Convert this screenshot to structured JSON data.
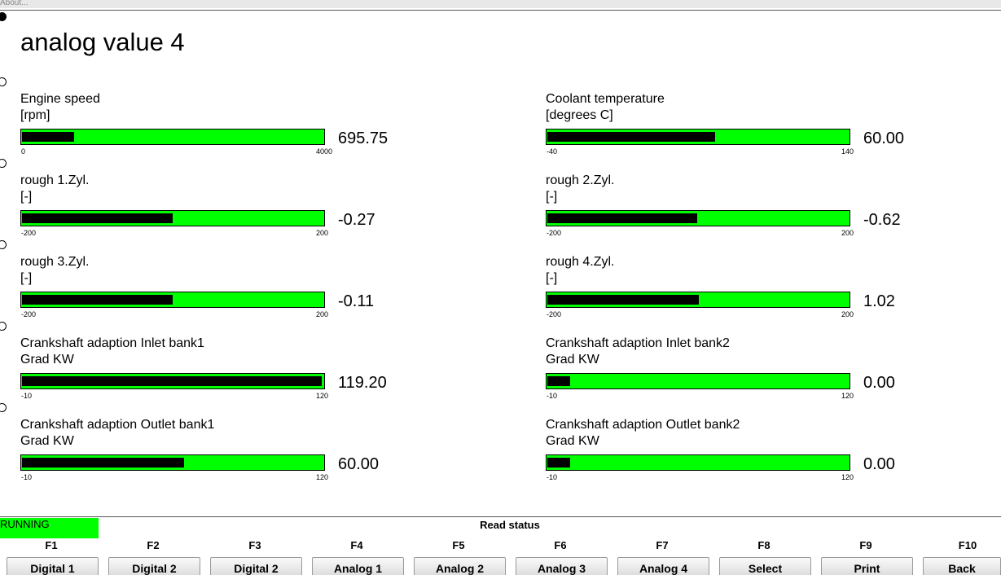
{
  "menu": "About...",
  "title": "analog value 4",
  "gauges": [
    {
      "label": "Engine speed",
      "unit": "[rpm]",
      "min": 0,
      "max": 4000,
      "value": 695.75,
      "value_label": "695.75"
    },
    {
      "label": "Coolant temperature",
      "unit": "[degrees C]",
      "min": -40,
      "max": 140,
      "value": 60,
      "value_label": "60.00"
    },
    {
      "label": "rough 1.Zyl.",
      "unit": "[-]",
      "min": -200,
      "max": 200,
      "value": -0.27,
      "value_label": "-0.27"
    },
    {
      "label": "rough 2.Zyl.",
      "unit": "[-]",
      "min": -200,
      "max": 200,
      "value": -0.62,
      "value_label": "-0.62"
    },
    {
      "label": "rough 3.Zyl.",
      "unit": "[-]",
      "min": -200,
      "max": 200,
      "value": -0.11,
      "value_label": "-0.11"
    },
    {
      "label": "rough 4.Zyl.",
      "unit": "[-]",
      "min": -200,
      "max": 200,
      "value": 1.02,
      "value_label": "1.02"
    },
    {
      "label": "Crankshaft adaption Inlet bank1",
      "unit": "Grad KW",
      "min": -10,
      "max": 120,
      "value": 119.2,
      "value_label": "119.20"
    },
    {
      "label": "Crankshaft adaption Inlet bank2",
      "unit": "Grad KW",
      "min": -10,
      "max": 120,
      "value": 0,
      "value_label": "0.00"
    },
    {
      "label": "Crankshaft adaption Outlet bank1",
      "unit": "Grad KW",
      "min": -10,
      "max": 120,
      "value": 60,
      "value_label": "60.00"
    },
    {
      "label": "Crankshaft adaption Outlet bank2",
      "unit": "Grad KW",
      "min": -10,
      "max": 120,
      "value": 0,
      "value_label": "0.00"
    }
  ],
  "status": {
    "state": "RUNNING",
    "text": "Read status"
  },
  "keys": [
    {
      "key": "F1",
      "label": "Digital 1"
    },
    {
      "key": "F2",
      "label": "Digital 2"
    },
    {
      "key": "F3",
      "label": "Digital 2"
    },
    {
      "key": "F4",
      "label": "Analog 1"
    },
    {
      "key": "F5",
      "label": "Analog 2"
    },
    {
      "key": "F6",
      "label": "Analog 3"
    },
    {
      "key": "F7",
      "label": "Analog 4"
    },
    {
      "key": "F8",
      "label": "Select"
    },
    {
      "key": "F9",
      "label": "Print"
    },
    {
      "key": "F10",
      "label": "Back"
    }
  ]
}
